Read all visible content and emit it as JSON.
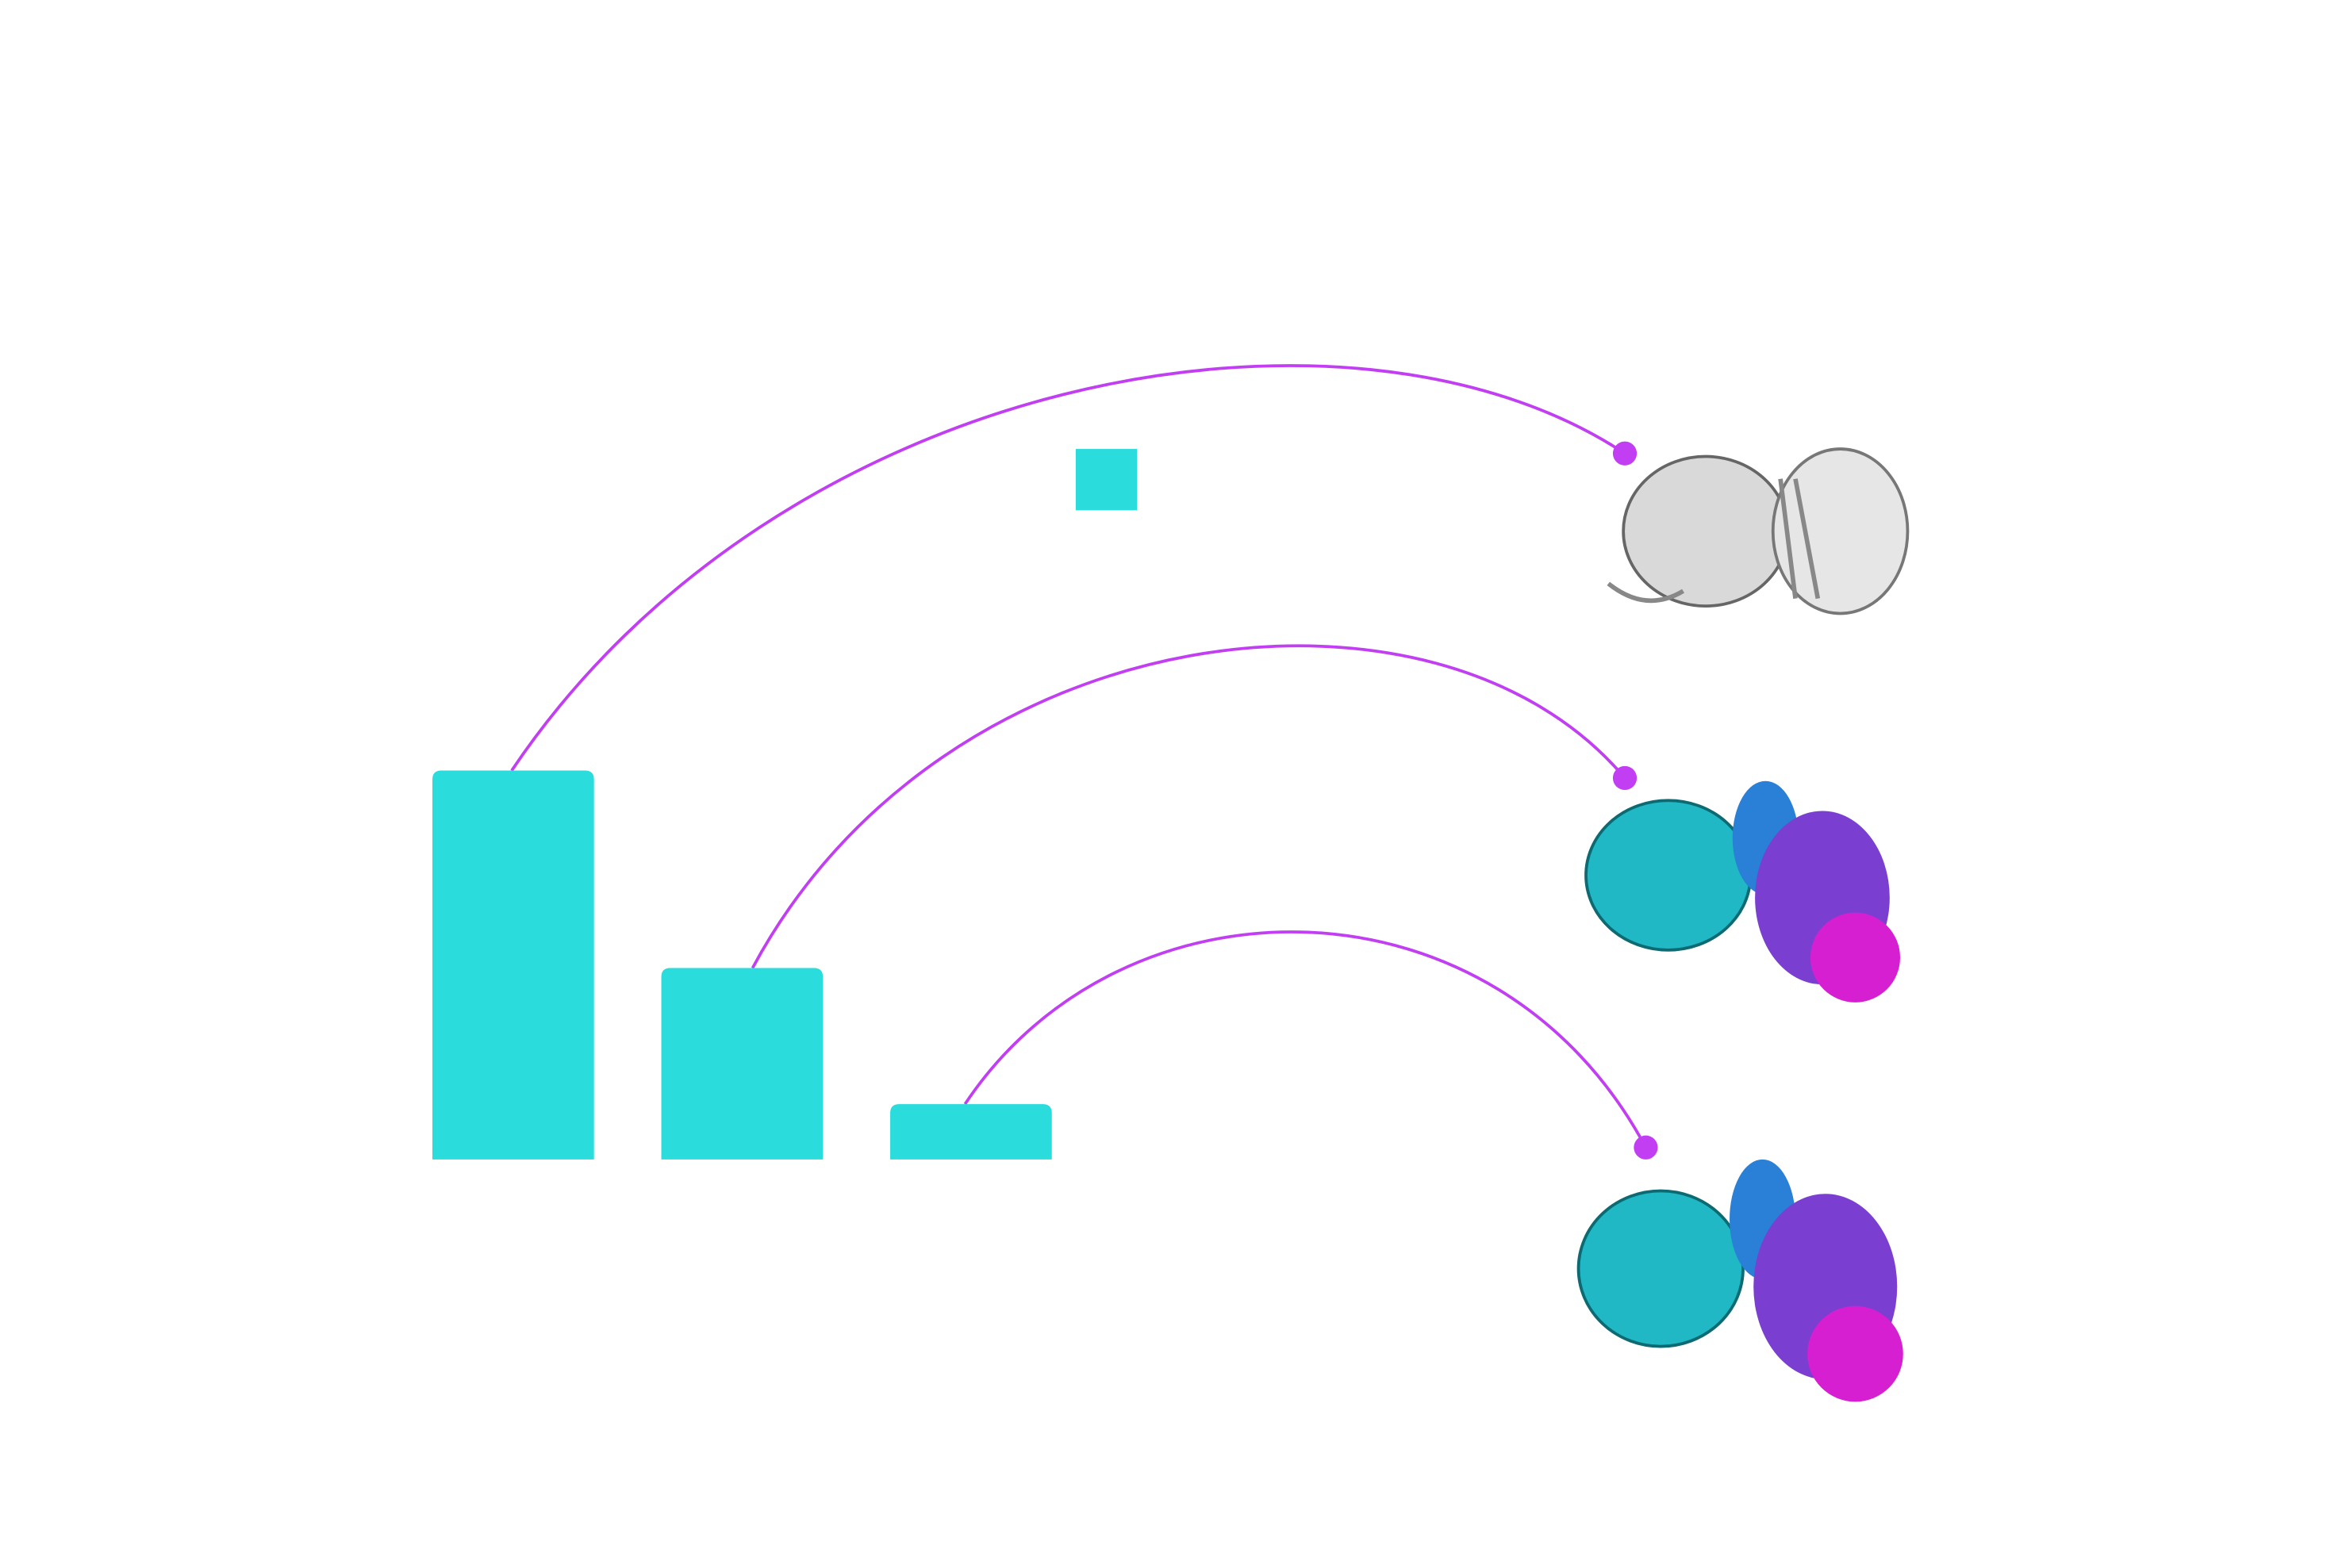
{
  "chart_data": {
    "type": "bar",
    "categories": [
      null,
      null,
      null
    ],
    "values": [
      260,
      128,
      37
    ],
    "color": "#2adcdc",
    "ylim": [
      0,
      260
    ],
    "grid": false
  }
}
